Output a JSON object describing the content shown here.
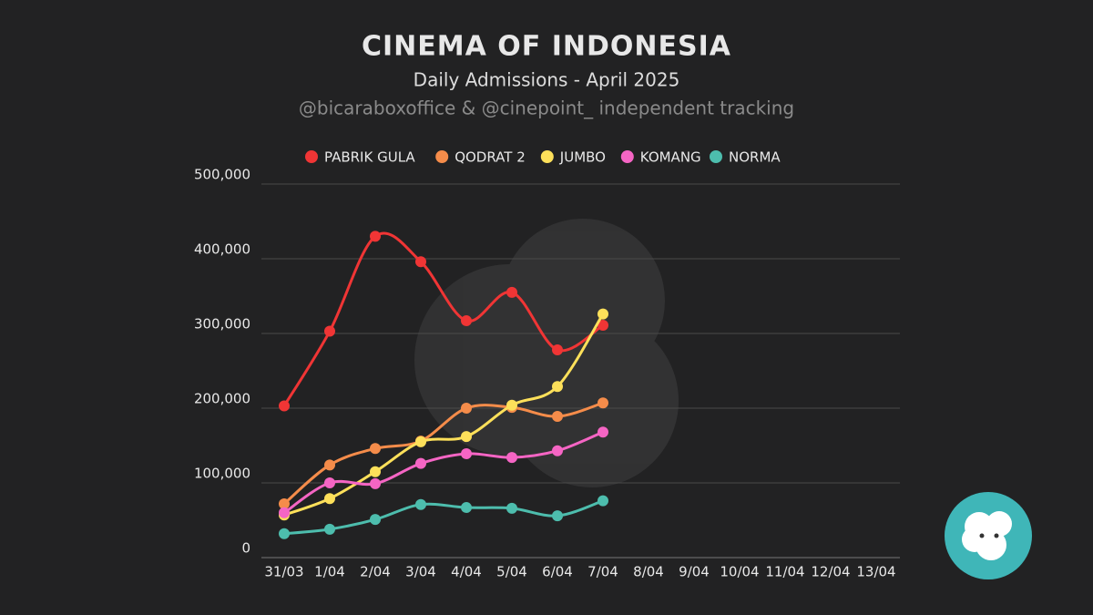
{
  "chart_data": {
    "type": "line",
    "title": "CINEMA OF INDONESIA",
    "subtitle": "Daily Admissions - April 2025",
    "source": "@bicaraboxoffice & @cinepoint_ independent tracking",
    "categories": [
      "31/03",
      "1/04",
      "2/04",
      "3/04",
      "4/04",
      "5/04",
      "6/04",
      "7/04",
      "8/04",
      "9/04",
      "10/04",
      "11/04",
      "12/04",
      "13/04"
    ],
    "series": [
      {
        "name": "PABRIK GULA",
        "color": "#f03535",
        "values": [
          203000,
          303000,
          430000,
          396000,
          317000,
          355000,
          278000,
          311000,
          null,
          null,
          null,
          null,
          null,
          null
        ]
      },
      {
        "name": "QODRAT 2",
        "color": "#f58c4a",
        "values": [
          72000,
          124000,
          146000,
          156000,
          200000,
          201000,
          189000,
          207000,
          null,
          null,
          null,
          null,
          null,
          null
        ]
      },
      {
        "name": "JUMBO",
        "color": "#fde05a",
        "values": [
          57000,
          79000,
          115000,
          155000,
          162000,
          204000,
          229000,
          326000,
          null,
          null,
          null,
          null,
          null,
          null
        ]
      },
      {
        "name": "KOMANG",
        "color": "#f565c4",
        "values": [
          60000,
          100000,
          99000,
          126000,
          139000,
          134000,
          143000,
          168000,
          null,
          null,
          null,
          null,
          null,
          null
        ]
      },
      {
        "name": "NORMA",
        "color": "#4dbdad",
        "values": [
          32000,
          38000,
          51000,
          71000,
          67000,
          66000,
          56000,
          76000,
          null,
          null,
          null,
          null,
          null,
          null
        ]
      }
    ],
    "ylim": [
      0,
      500000
    ],
    "yticks": [
      0,
      {
        "value": 100000,
        "label": "100,000"
      },
      {
        "value": 200000,
        "label": "200,000"
      },
      {
        "value": 300000,
        "label": "300,000"
      },
      {
        "value": 400000,
        "label": "400,000"
      },
      {
        "value": 500000,
        "label": "500,000"
      }
    ],
    "grid": true,
    "legend": "top"
  }
}
